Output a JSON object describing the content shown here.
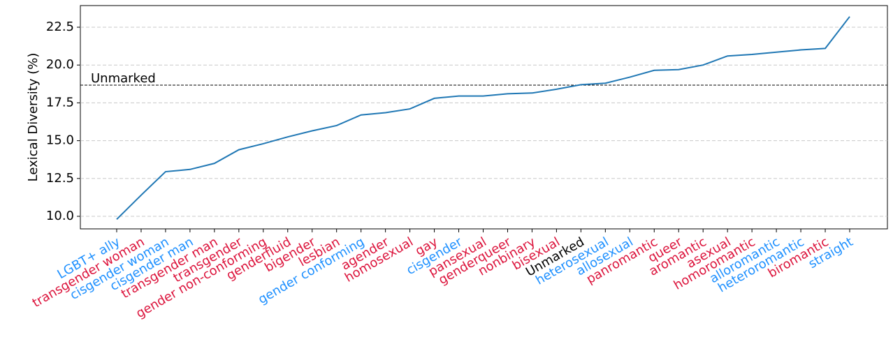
{
  "chart_data": {
    "type": "line",
    "y_label": "Lexical Diversity (%)",
    "categories": [
      "LGBT+ ally",
      "transgender woman",
      "cisgender woman",
      "cisgender man",
      "transgender man",
      "transgender",
      "gender non-conforming",
      "genderfluid",
      "bigender",
      "lesbian",
      "gender conforming",
      "agender",
      "homosexual",
      "gay",
      "cisgender",
      "pansexual",
      "genderqueer",
      "nonbinary",
      "bisexual",
      "Unmarked",
      "heterosexual",
      "allosexual",
      "panromantic",
      "queer",
      "aromantic",
      "asexual",
      "homoromantic",
      "alloromantic",
      "heteroromantic",
      "biromantic",
      "straight"
    ],
    "category_colors": [
      "#1e90ff",
      "#dc143c",
      "#1e90ff",
      "#1e90ff",
      "#dc143c",
      "#dc143c",
      "#dc143c",
      "#dc143c",
      "#dc143c",
      "#dc143c",
      "#1e90ff",
      "#dc143c",
      "#dc143c",
      "#dc143c",
      "#1e90ff",
      "#dc143c",
      "#dc143c",
      "#dc143c",
      "#dc143c",
      "#000000",
      "#1e90ff",
      "#1e90ff",
      "#dc143c",
      "#dc143c",
      "#dc143c",
      "#dc143c",
      "#dc143c",
      "#1e90ff",
      "#1e90ff",
      "#dc143c",
      "#1e90ff"
    ],
    "series": [
      {
        "color": "#1f77b4",
        "values": [
          9.8,
          11.4,
          12.95,
          13.1,
          13.5,
          14.4,
          14.8,
          15.25,
          15.65,
          16.0,
          16.7,
          16.85,
          17.1,
          17.8,
          17.95,
          17.95,
          18.1,
          18.15,
          18.4,
          18.7,
          18.8,
          19.2,
          19.65,
          19.7,
          20.0,
          20.6,
          20.7,
          20.85,
          21.0,
          21.1,
          23.2
        ]
      }
    ],
    "reference_line": {
      "value": 18.67,
      "label": "Unmarked"
    },
    "ylim": [
      9.17,
      23.93
    ],
    "yticks": [
      {
        "value": 10,
        "label": "10.0"
      },
      {
        "value": 12.5,
        "label": "12.5"
      },
      {
        "value": 15,
        "label": "15.0"
      },
      {
        "value": 17.5,
        "label": "17.5"
      },
      {
        "value": 20,
        "label": "20.0"
      },
      {
        "value": 22.5,
        "label": "22.5"
      }
    ],
    "grid": true
  }
}
